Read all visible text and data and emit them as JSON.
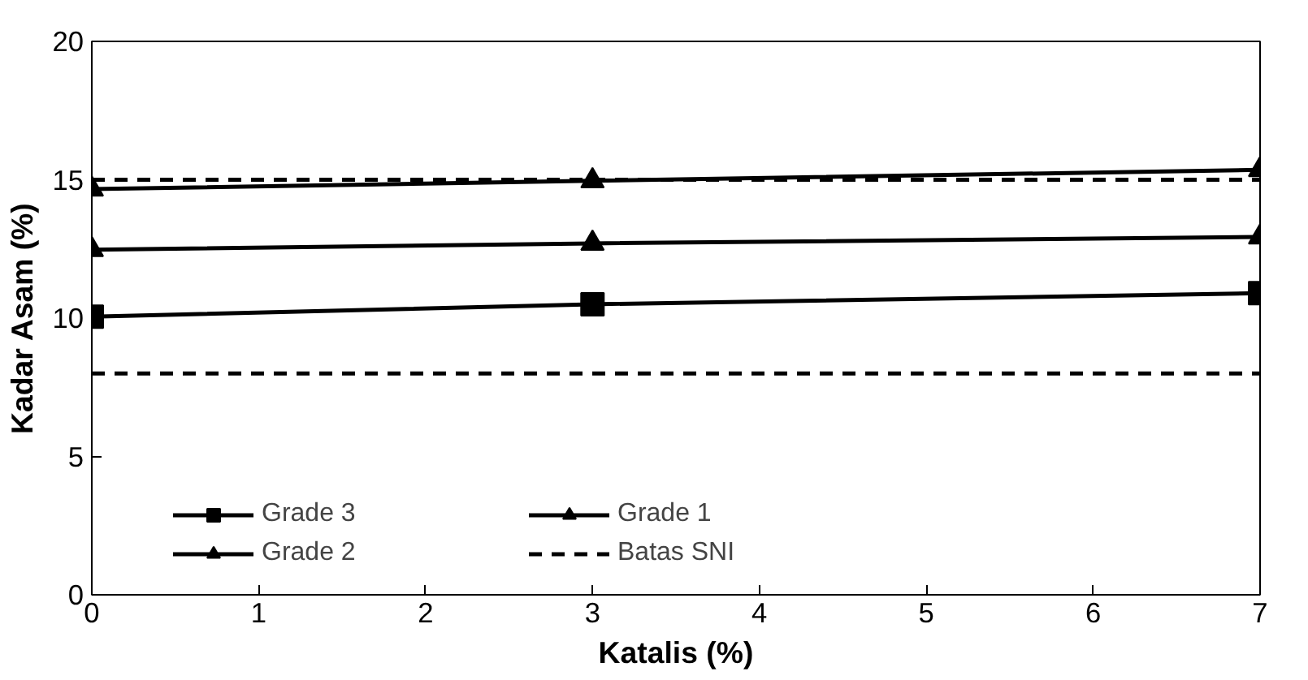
{
  "chart_data": {
    "type": "line",
    "xlabel": "Katalis (%)",
    "ylabel": "Kadar Asam (%)",
    "x": [
      0,
      3,
      7
    ],
    "series": [
      {
        "name": "Grade 3",
        "color": "#000000",
        "marker": "square",
        "values": [
          10.05,
          10.5,
          10.9
        ]
      },
      {
        "name": "Grade 2",
        "color": "#000000",
        "marker": "triangle",
        "values": [
          12.47,
          12.7,
          12.93
        ]
      },
      {
        "name": "Grade 1",
        "color": "#000000",
        "marker": "triangle",
        "values": [
          14.66,
          14.96,
          15.36
        ]
      },
      {
        "name": "Batas SNI",
        "color": "#000000",
        "marker": "none",
        "line_style": "dashed",
        "values": [
          15,
          15,
          15
        ]
      },
      {
        "color": "#000000",
        "marker": "none",
        "line_style": "dashed",
        "values": [
          8,
          8,
          8
        ]
      }
    ],
    "xlim": [
      0,
      7
    ],
    "xticks": [
      0,
      1,
      2,
      3,
      4,
      5,
      6,
      7
    ],
    "ylim": [
      0,
      20
    ],
    "yticks": [
      0,
      5,
      10,
      15,
      20
    ],
    "grid": false,
    "legend": "bottom"
  }
}
